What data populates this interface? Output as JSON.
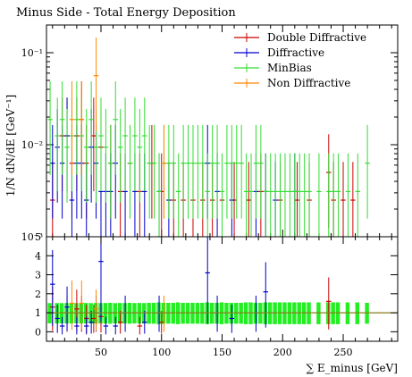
{
  "chart_data": {
    "type": "histogram-errorbars",
    "title": "Minus Side - Total Energy Deposition",
    "ylabel": "1/N dN/dE [GeV⁻¹]",
    "xlabel": "∑ E_minus [GeV]",
    "x_ticks": [
      50,
      100,
      150,
      200,
      250
    ],
    "x_range": [
      5,
      295
    ],
    "y_scale": "log",
    "y_range": [
      0.001,
      0.2
    ],
    "y_tick_labels": [
      {
        "value": 0.1,
        "label": "10⁻¹"
      },
      {
        "value": 0.01,
        "label": "10⁻²"
      },
      {
        "value": 0.001,
        "label": "10⁻³"
      }
    ],
    "ratio_range": [
      -0.5,
      5
    ],
    "ratio_ticks": [
      0,
      1,
      2,
      3,
      4,
      5
    ],
    "reference_series": "MinBias",
    "legend_position": "top-right",
    "series": [
      {
        "name": "Double Diffractive",
        "color": "#cc0000",
        "bin_width": 4,
        "points": [
          [
            10,
            0.0025
          ],
          [
            18,
            0.0125
          ],
          [
            22,
            0.0125
          ],
          [
            26,
            0.0063
          ],
          [
            30,
            0.0125
          ],
          [
            34,
            0.0188
          ],
          [
            38,
            0.0063
          ],
          [
            44,
            0.0125
          ],
          [
            50,
            0.0094
          ],
          [
            58,
            0.0063
          ],
          [
            66,
            0.0031
          ],
          [
            74,
            0.0063
          ],
          [
            82,
            0.0031
          ],
          [
            92,
            0.0063
          ],
          [
            100,
            0.0031
          ],
          [
            110,
            0.0025
          ],
          [
            118,
            0.0025
          ],
          [
            126,
            0.0025
          ],
          [
            134,
            0.0025
          ],
          [
            142,
            0.0025
          ],
          [
            150,
            0.0025
          ],
          [
            160,
            0.0025
          ],
          [
            172,
            0.0025
          ],
          [
            182,
            0.0031
          ],
          [
            198,
            0.0025
          ],
          [
            212,
            0.0025
          ],
          [
            222,
            0.0025
          ],
          [
            238,
            0.005
          ],
          [
            242,
            0.0025
          ],
          [
            250,
            0.0025
          ],
          [
            258,
            0.0025
          ]
        ]
      },
      {
        "name": "Diffractive",
        "color": "#0000cc",
        "bin_width": 4,
        "points": [
          [
            10,
            0.0063
          ],
          [
            14,
            0.0094
          ],
          [
            18,
            0.0063
          ],
          [
            22,
            0.0125
          ],
          [
            26,
            0.0025
          ],
          [
            30,
            0.0063
          ],
          [
            34,
            0.0063
          ],
          [
            38,
            0.0025
          ],
          [
            42,
            0.0094
          ],
          [
            46,
            0.0063
          ],
          [
            50,
            0.0031
          ],
          [
            54,
            0.0031
          ],
          [
            58,
            0.0031
          ],
          [
            62,
            0.0063
          ],
          [
            70,
            0.0031
          ],
          [
            78,
            0.0031
          ],
          [
            86,
            0.0031
          ],
          [
            98,
            0.0031
          ],
          [
            106,
            0.0025
          ],
          [
            138,
            0.0063
          ],
          [
            146,
            0.0031
          ],
          [
            158,
            0.0025
          ],
          [
            178,
            0.0031
          ],
          [
            186,
            0.0031
          ],
          [
            194,
            0.0025
          ],
          [
            210,
            0.0031
          ]
        ]
      },
      {
        "name": "MinBias",
        "color": "#33dd33",
        "bin_width": 4,
        "points": [
          [
            8,
            0.0188
          ],
          [
            14,
            0.0125
          ],
          [
            18,
            0.0188
          ],
          [
            22,
            0.0094
          ],
          [
            26,
            0.0125
          ],
          [
            30,
            0.0188
          ],
          [
            34,
            0.0125
          ],
          [
            38,
            0.0094
          ],
          [
            42,
            0.0188
          ],
          [
            46,
            0.0094
          ],
          [
            50,
            0.0125
          ],
          [
            54,
            0.0094
          ],
          [
            58,
            0.0063
          ],
          [
            62,
            0.0188
          ],
          [
            66,
            0.0094
          ],
          [
            70,
            0.0125
          ],
          [
            74,
            0.0063
          ],
          [
            78,
            0.0125
          ],
          [
            82,
            0.0094
          ],
          [
            86,
            0.0125
          ],
          [
            90,
            0.0063
          ],
          [
            94,
            0.0063
          ],
          [
            98,
            0.0031
          ],
          [
            102,
            0.0063
          ],
          [
            106,
            0.0063
          ],
          [
            110,
            0.0063
          ],
          [
            114,
            0.0031
          ],
          [
            118,
            0.0063
          ],
          [
            122,
            0.0063
          ],
          [
            126,
            0.0063
          ],
          [
            130,
            0.0063
          ],
          [
            134,
            0.0063
          ],
          [
            138,
            0.0031
          ],
          [
            142,
            0.0063
          ],
          [
            146,
            0.0063
          ],
          [
            150,
            0.0031
          ],
          [
            154,
            0.0063
          ],
          [
            158,
            0.0063
          ],
          [
            162,
            0.0063
          ],
          [
            166,
            0.0063
          ],
          [
            170,
            0.0031
          ],
          [
            174,
            0.0031
          ],
          [
            178,
            0.0063
          ],
          [
            182,
            0.0063
          ],
          [
            186,
            0.0031
          ],
          [
            190,
            0.0031
          ],
          [
            194,
            0.0031
          ],
          [
            198,
            0.0031
          ],
          [
            202,
            0.0031
          ],
          [
            206,
            0.0031
          ],
          [
            210,
            0.0031
          ],
          [
            214,
            0.0031
          ],
          [
            218,
            0.0031
          ],
          [
            222,
            0.0031
          ],
          [
            230,
            0.0031
          ],
          [
            238,
            0.0031
          ],
          [
            242,
            0.0031
          ],
          [
            246,
            0.0031
          ],
          [
            254,
            0.0031
          ],
          [
            262,
            0.0031
          ],
          [
            270,
            0.0063
          ]
        ]
      },
      {
        "name": "Non Diffractive",
        "color": "#ff8800",
        "bin_width": 4,
        "points": [
          [
            26,
            0.0188
          ],
          [
            34,
            0.0188
          ],
          [
            46,
            0.0563
          ],
          [
            102,
            0.0063
          ]
        ]
      }
    ],
    "ratio_points": {
      "Double Diffractive": [
        [
          10,
          1.3
        ],
        [
          22,
          1.0
        ],
        [
          30,
          1.2
        ],
        [
          34,
          1.0
        ],
        [
          38,
          0.7
        ],
        [
          44,
          0.7
        ],
        [
          50,
          0.8
        ],
        [
          66,
          0.5
        ],
        [
          82,
          0.3
        ],
        [
          100,
          0.5
        ],
        [
          238,
          1.6
        ]
      ],
      "Diffractive": [
        [
          10,
          2.5
        ],
        [
          14,
          0.7
        ],
        [
          18,
          0.3
        ],
        [
          22,
          1.3
        ],
        [
          30,
          0.3
        ],
        [
          38,
          0.3
        ],
        [
          42,
          0.5
        ],
        [
          46,
          1.0
        ],
        [
          50,
          3.7
        ],
        [
          54,
          0.3
        ],
        [
          62,
          0.3
        ],
        [
          70,
          1.0
        ],
        [
          86,
          0.5
        ],
        [
          98,
          1.0
        ],
        [
          138,
          3.1
        ],
        [
          146,
          1.0
        ],
        [
          158,
          0.7
        ],
        [
          178,
          1.0
        ],
        [
          186,
          2.1
        ]
      ],
      "Non Diffractive": [
        [
          26,
          1.5
        ],
        [
          34,
          1.5
        ],
        [
          46,
          1.2
        ],
        [
          102,
          1.0
        ]
      ]
    }
  }
}
